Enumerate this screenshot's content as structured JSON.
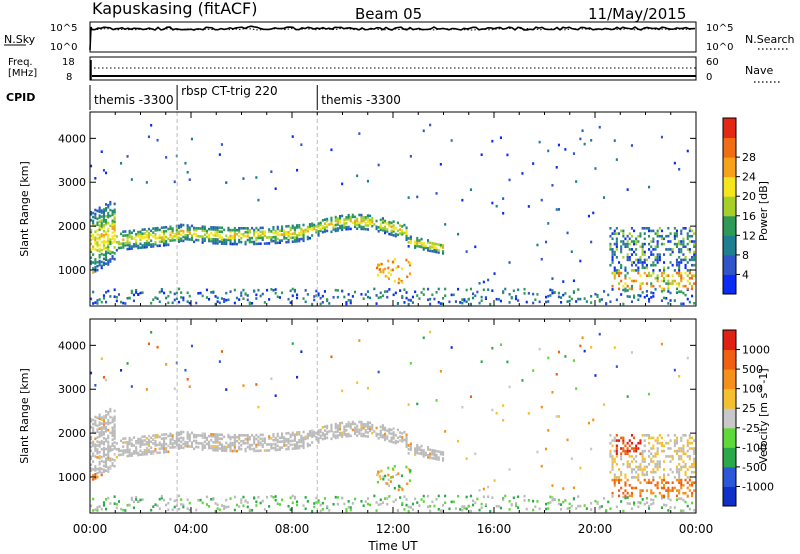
{
  "header": {
    "station": "Kapuskasing (fitACF)",
    "beam": "Beam 05",
    "date": "11/May/2015"
  },
  "top_panels": {
    "nsky": {
      "label": "N.Sky",
      "right_label": "N.Search",
      "left_ticks": [
        "10^5",
        "10^0"
      ],
      "right_ticks": [
        "10^5",
        "10^0"
      ]
    },
    "freq": {
      "label_line1": "Freq.",
      "label_line2": "[MHz]",
      "left_ticks": [
        "18",
        "8"
      ],
      "right_label": "Nave",
      "right_ticks": [
        "60",
        "0"
      ]
    },
    "cpid": {
      "label": "CPID",
      "segments": [
        {
          "label": "themis -3300",
          "start_hour": 0.0
        },
        {
          "label": "rbsp CT-trig 220",
          "start_hour": 3.45
        },
        {
          "label": "themis -3300",
          "start_hour": 9.0
        }
      ]
    }
  },
  "chart_data": [
    {
      "type": "heatmap",
      "title": "",
      "ylabel": "Slant Range [km]",
      "xlabel": "",
      "x_range_hours": [
        0,
        24
      ],
      "y_range_km": [
        180,
        4600
      ],
      "y_ticks": [
        1000,
        2000,
        3000,
        4000
      ],
      "colorbar": {
        "label": "Power [dB]",
        "ticks": [
          "4",
          "8",
          "12",
          "16",
          "20",
          "24",
          "28"
        ],
        "range": [
          0,
          30
        ],
        "colors": [
          "#0a2cf5",
          "#2f55c8",
          "#1d7f8f",
          "#2e9a55",
          "#a6d028",
          "#f5e51d",
          "#f5a21a",
          "#f06d13",
          "#e32914"
        ]
      },
      "echo_bands": [
        {
          "name": "main",
          "start_hour": 0.0,
          "end_hour": 14.0,
          "min_km": 1300,
          "max_km": 2500,
          "level": 0.55
        },
        {
          "name": "near",
          "start_hour": 0.0,
          "end_hour": 24.0,
          "min_km": 250,
          "max_km": 600,
          "level": 0.35
        },
        {
          "name": "late",
          "start_hour": 20.5,
          "end_hour": 24.0,
          "min_km": 600,
          "max_km": 2000,
          "level": 0.5
        }
      ]
    },
    {
      "type": "heatmap",
      "title": "",
      "ylabel": "Slant Range [km]",
      "xlabel": "Time UT",
      "x_ticks": [
        "00:00",
        "04:00",
        "08:00",
        "12:00",
        "16:00",
        "20:00",
        "00:00"
      ],
      "x_range_hours": [
        0,
        24
      ],
      "y_range_km": [
        180,
        4600
      ],
      "y_ticks": [
        1000,
        2000,
        3000,
        4000
      ],
      "colorbar": {
        "label": "Velocity [m s^-1]",
        "ticks": [
          "1000",
          "500",
          "100",
          "25",
          "-25",
          "-100",
          "-500",
          "-1000"
        ],
        "colors": [
          "#1030c8",
          "#2a58d8",
          "#2aa84a",
          "#5fd83a",
          "#c8c8c8",
          "#f5c030",
          "#f5901a",
          "#f06010",
          "#e02010"
        ]
      },
      "ground_scatter_color": "#bbbbbb"
    }
  ],
  "colors": {
    "axis": "#000000",
    "background": "#ffffff"
  }
}
